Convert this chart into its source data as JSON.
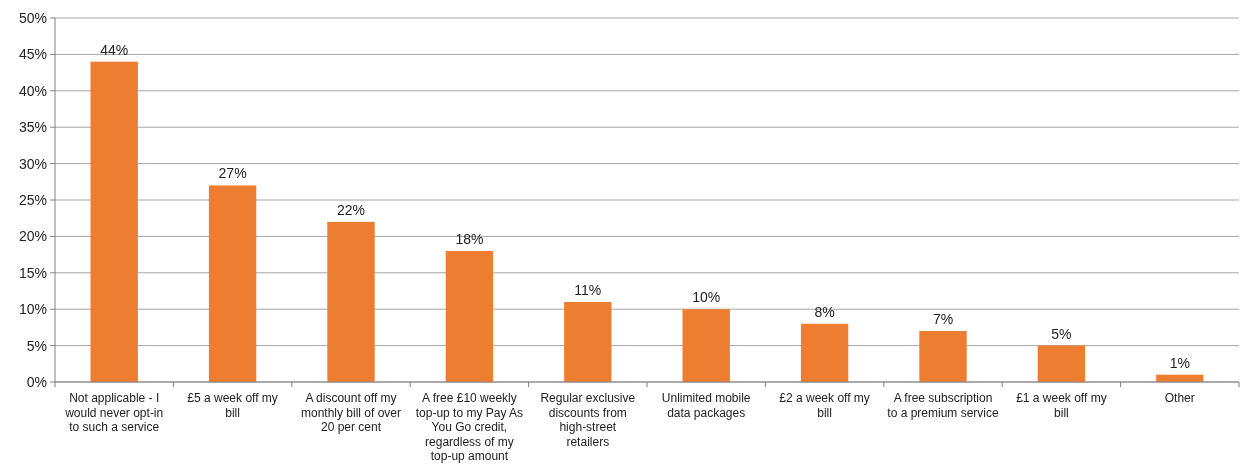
{
  "chart_data": {
    "type": "bar",
    "categories": [
      "Not applicable - I would never opt-in to such a service",
      "£5 a week off my bill",
      "A discount off my monthly bill of over 20 per cent",
      "A free £10 weekly top-up to my Pay As You Go credit, regardless of my top-up amount",
      "Regular exclusive discounts from high-street retailers",
      "Unlimited mobile data packages",
      "£2 a week off my bill",
      "A free subscription to a premium service",
      "£1 a week off my bill",
      "Other"
    ],
    "values": [
      44,
      27,
      22,
      18,
      11,
      10,
      8,
      7,
      5,
      1
    ],
    "value_labels": [
      "44%",
      "27%",
      "22%",
      "18%",
      "11%",
      "10%",
      "8%",
      "7%",
      "5%",
      "1%"
    ],
    "color": "#ed7d31",
    "ylim": [
      0,
      50
    ],
    "yticks": [
      {
        "value": 0,
        "label": "0%"
      },
      {
        "value": 5,
        "label": "5%"
      },
      {
        "value": 10,
        "label": "10%"
      },
      {
        "value": 15,
        "label": "15%"
      },
      {
        "value": 20,
        "label": "20%"
      },
      {
        "value": 25,
        "label": "25%"
      },
      {
        "value": 30,
        "label": "30%"
      },
      {
        "value": 35,
        "label": "35%"
      },
      {
        "value": 40,
        "label": "40%"
      },
      {
        "value": 45,
        "label": "45%"
      },
      {
        "value": 50,
        "label": "50%"
      }
    ],
    "grid": "y"
  }
}
